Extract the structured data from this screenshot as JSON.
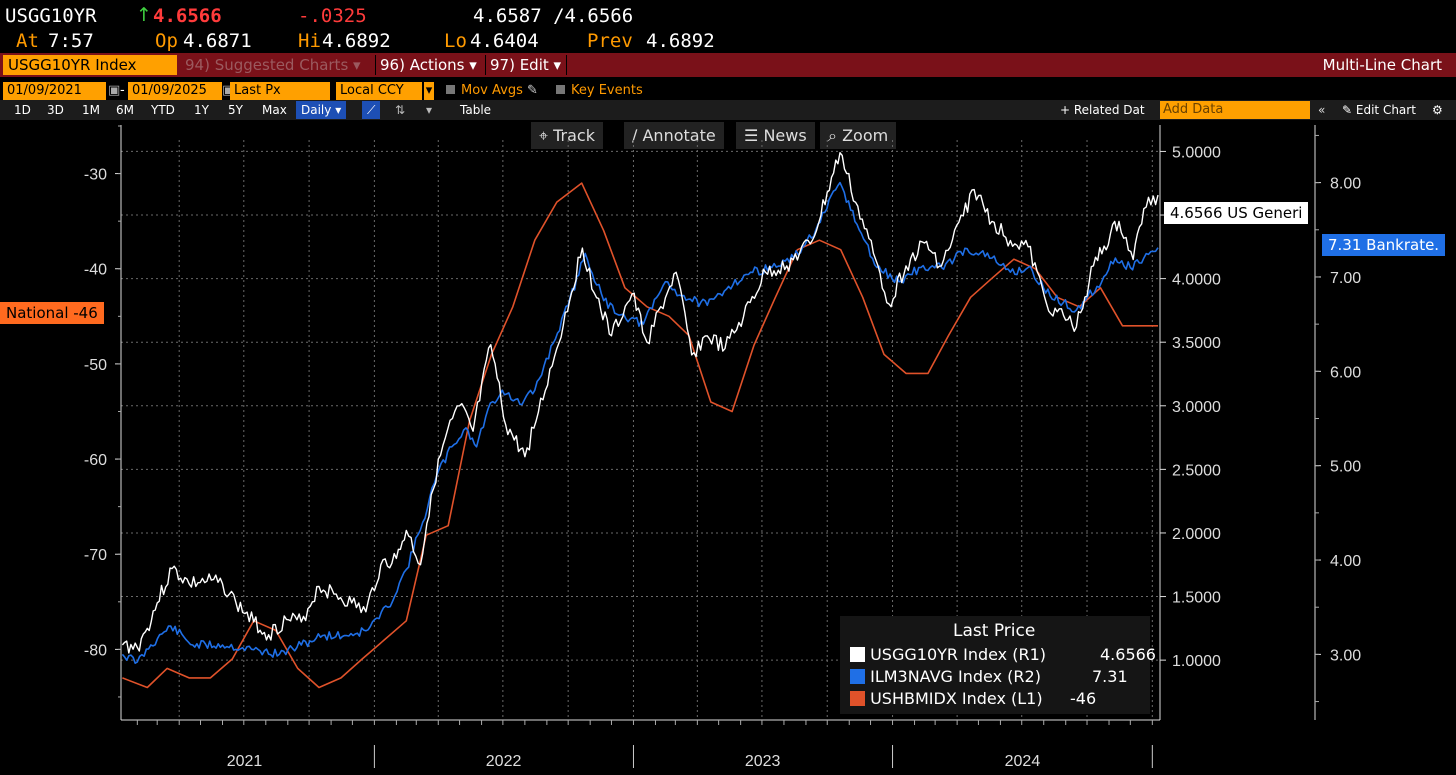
{
  "header": {
    "ticker": "USGG10YR",
    "arrow": "↑",
    "last": "4.6566",
    "change": "-.0325",
    "bid_ask": "4.6587 /4.6566",
    "at_label": "At",
    "at_value": "7:57",
    "op_label": "Op",
    "op_value": "4.6871",
    "hi_label": "Hi",
    "hi_value": "4.6892",
    "lo_label": "Lo",
    "lo_value": "4.6404",
    "prev_label": "Prev",
    "prev_value": "4.6892"
  },
  "titlebar": {
    "security": "USGG10YR Index",
    "suggested": "94) Suggested Charts",
    "actions": "96) Actions",
    "edit": "97) Edit",
    "chart_type": "Multi-Line Chart"
  },
  "controls": {
    "start_date": "01/09/2021",
    "end_date": "01/09/2025",
    "field": "Last Px",
    "currency": "Local CCY",
    "mov_avgs": "Mov Avgs",
    "key_events": "Key Events"
  },
  "ranges": [
    "1D",
    "3D",
    "1M",
    "6M",
    "YTD",
    "1Y",
    "5Y",
    "Max"
  ],
  "frequency": "Daily",
  "table_label": "Table",
  "related_data": "+ Related Dat",
  "add_data_placeholder": "Add Data",
  "edit_chart": "Edit Chart",
  "tools": {
    "track": "Track",
    "annotate": "Annotate",
    "news": "News",
    "zoom": "Zoom"
  },
  "colors": {
    "usgg10yr": "#ffffff",
    "ilm3navg": "#1f6fe6",
    "ushbmidx": "#e0522a",
    "amber": "#ffa000",
    "titlebar": "#7a1119"
  },
  "tags": {
    "national": "National -46",
    "usgg": "4.6566 US Generi",
    "bankrate": "7.31 Bankrate."
  },
  "legend": {
    "title": "Last Price",
    "rows": [
      {
        "name": "USGG10YR Index  (R1)",
        "value": "4.6566",
        "color": "#ffffff"
      },
      {
        "name": "ILM3NAVG Index  (R2)",
        "value": "7.31",
        "color": "#1f6fe6"
      },
      {
        "name": "USHBMIDX Index  (L1)",
        "value": "-46",
        "color": "#e0522a"
      }
    ]
  },
  "chart_data": {
    "type": "line",
    "x_range": [
      "2021-01-09",
      "2025-01-09"
    ],
    "x_tick_labels": [
      "2021",
      "2022",
      "2023",
      "2024"
    ],
    "grid": true,
    "axes": {
      "L1": {
        "ticks": [
          -30,
          -40,
          -50,
          -60,
          -70,
          -80
        ],
        "range": [
          -87,
          -25
        ]
      },
      "R1": {
        "ticks": [
          "5.0000",
          "4.5000",
          "4.0000",
          "3.5000",
          "3.0000",
          "2.5000",
          "2.0000",
          "1.5000",
          "1.0000"
        ],
        "range": [
          0.6,
          5.2
        ]
      },
      "R2": {
        "ticks": [
          "8.00",
          "7.00",
          "6.00",
          "5.00",
          "4.00",
          "3.00"
        ],
        "range": [
          2.4,
          8.6
        ]
      }
    },
    "series": [
      {
        "name": "USGG10YR Index",
        "axis": "R1",
        "points": [
          [
            "2021-01-11",
            1.12
          ],
          [
            "2021-02-01",
            1.1
          ],
          [
            "2021-02-15",
            1.25
          ],
          [
            "2021-03-01",
            1.45
          ],
          [
            "2021-03-22",
            1.72
          ],
          [
            "2021-04-15",
            1.6
          ],
          [
            "2021-05-10",
            1.62
          ],
          [
            "2021-06-01",
            1.6
          ],
          [
            "2021-06-20",
            1.45
          ],
          [
            "2021-07-15",
            1.3
          ],
          [
            "2021-08-05",
            1.2
          ],
          [
            "2021-08-30",
            1.32
          ],
          [
            "2021-09-20",
            1.3
          ],
          [
            "2021-10-15",
            1.58
          ],
          [
            "2021-11-05",
            1.52
          ],
          [
            "2021-11-30",
            1.45
          ],
          [
            "2021-12-20",
            1.38
          ],
          [
            "2022-01-10",
            1.75
          ],
          [
            "2022-02-01",
            1.8
          ],
          [
            "2022-02-15",
            2.02
          ],
          [
            "2022-03-07",
            1.75
          ],
          [
            "2022-03-22",
            2.3
          ],
          [
            "2022-04-11",
            2.75
          ],
          [
            "2022-05-01",
            3.0
          ],
          [
            "2022-05-20",
            2.8
          ],
          [
            "2022-06-14",
            3.48
          ],
          [
            "2022-07-05",
            2.85
          ],
          [
            "2022-08-01",
            2.6
          ],
          [
            "2022-08-20",
            2.95
          ],
          [
            "2022-09-15",
            3.45
          ],
          [
            "2022-10-21",
            4.24
          ],
          [
            "2022-11-10",
            3.85
          ],
          [
            "2022-12-01",
            3.55
          ],
          [
            "2022-12-30",
            3.88
          ],
          [
            "2023-01-20",
            3.5
          ],
          [
            "2023-02-15",
            3.85
          ],
          [
            "2023-03-02",
            4.05
          ],
          [
            "2023-03-24",
            3.4
          ],
          [
            "2023-04-15",
            3.55
          ],
          [
            "2023-05-10",
            3.45
          ],
          [
            "2023-06-05",
            3.7
          ],
          [
            "2023-07-06",
            4.05
          ],
          [
            "2023-08-05",
            4.1
          ],
          [
            "2023-09-10",
            4.3
          ],
          [
            "2023-10-19",
            4.99
          ],
          [
            "2023-11-10",
            4.6
          ],
          [
            "2023-12-05",
            4.2
          ],
          [
            "2023-12-27",
            3.8
          ],
          [
            "2024-01-20",
            4.1
          ],
          [
            "2024-02-15",
            4.28
          ],
          [
            "2024-03-10",
            4.1
          ],
          [
            "2024-04-25",
            4.7
          ],
          [
            "2024-05-20",
            4.45
          ],
          [
            "2024-06-15",
            4.3
          ],
          [
            "2024-07-10",
            4.25
          ],
          [
            "2024-08-05",
            3.8
          ],
          [
            "2024-09-16",
            3.62
          ],
          [
            "2024-10-10",
            4.1
          ],
          [
            "2024-11-15",
            4.45
          ],
          [
            "2024-12-05",
            4.15
          ],
          [
            "2024-12-20",
            4.55
          ],
          [
            "2025-01-09",
            4.6566
          ]
        ]
      },
      {
        "name": "ILM3NAVG Index",
        "axis": "R2",
        "points": [
          [
            "2021-01-11",
            3.0
          ],
          [
            "2021-02-01",
            2.92
          ],
          [
            "2021-02-20",
            3.1
          ],
          [
            "2021-03-20",
            3.3
          ],
          [
            "2021-04-20",
            3.1
          ],
          [
            "2021-06-01",
            3.1
          ],
          [
            "2021-07-15",
            3.05
          ],
          [
            "2021-08-20",
            3.0
          ],
          [
            "2021-09-20",
            3.1
          ],
          [
            "2021-10-20",
            3.2
          ],
          [
            "2021-11-20",
            3.2
          ],
          [
            "2021-12-20",
            3.25
          ],
          [
            "2022-01-20",
            3.5
          ],
          [
            "2022-02-15",
            3.9
          ],
          [
            "2022-03-10",
            4.4
          ],
          [
            "2022-03-30",
            4.9
          ],
          [
            "2022-04-20",
            5.2
          ],
          [
            "2022-05-10",
            5.4
          ],
          [
            "2022-05-25",
            5.2
          ],
          [
            "2022-06-10",
            5.6
          ],
          [
            "2022-06-30",
            5.8
          ],
          [
            "2022-07-25",
            5.65
          ],
          [
            "2022-08-15",
            5.8
          ],
          [
            "2022-09-10",
            6.3
          ],
          [
            "2022-10-01",
            6.7
          ],
          [
            "2022-10-25",
            7.25
          ],
          [
            "2022-11-20",
            6.75
          ],
          [
            "2022-12-15",
            6.6
          ],
          [
            "2023-01-15",
            6.5
          ],
          [
            "2023-02-15",
            6.95
          ],
          [
            "2023-03-10",
            6.8
          ],
          [
            "2023-04-15",
            6.7
          ],
          [
            "2023-05-15",
            6.9
          ],
          [
            "2023-06-15",
            7.05
          ],
          [
            "2023-07-15",
            7.1
          ],
          [
            "2023-08-15",
            7.2
          ],
          [
            "2023-09-15",
            7.5
          ],
          [
            "2023-10-19",
            8.0
          ],
          [
            "2023-11-15",
            7.5
          ],
          [
            "2023-12-10",
            7.1
          ],
          [
            "2024-01-10",
            6.95
          ],
          [
            "2024-02-10",
            7.1
          ],
          [
            "2024-03-10",
            7.1
          ],
          [
            "2024-04-15",
            7.3
          ],
          [
            "2024-05-20",
            7.2
          ],
          [
            "2024-06-15",
            7.05
          ],
          [
            "2024-07-10",
            7.1
          ],
          [
            "2024-08-10",
            6.8
          ],
          [
            "2024-09-16",
            6.65
          ],
          [
            "2024-10-15",
            6.9
          ],
          [
            "2024-11-10",
            7.2
          ],
          [
            "2024-12-01",
            7.1
          ],
          [
            "2024-12-20",
            7.2
          ],
          [
            "2025-01-09",
            7.31
          ]
        ]
      },
      {
        "name": "USHBMIDX Index",
        "axis": "L1",
        "points": [
          [
            "2021-01-11",
            -83
          ],
          [
            "2021-02-15",
            -84
          ],
          [
            "2021-03-15",
            -82
          ],
          [
            "2021-04-15",
            -83
          ],
          [
            "2021-05-15",
            -83
          ],
          [
            "2021-06-15",
            -81
          ],
          [
            "2021-07-15",
            -77
          ],
          [
            "2021-08-15",
            -78
          ],
          [
            "2021-09-15",
            -82
          ],
          [
            "2021-10-15",
            -84
          ],
          [
            "2021-11-15",
            -83
          ],
          [
            "2021-12-15",
            -81
          ],
          [
            "2022-01-15",
            -79
          ],
          [
            "2022-02-15",
            -77
          ],
          [
            "2022-03-15",
            -68
          ],
          [
            "2022-04-15",
            -67
          ],
          [
            "2022-05-15",
            -56
          ],
          [
            "2022-06-15",
            -49
          ],
          [
            "2022-07-15",
            -44
          ],
          [
            "2022-08-15",
            -37
          ],
          [
            "2022-09-15",
            -33
          ],
          [
            "2022-10-20",
            -31
          ],
          [
            "2022-11-20",
            -36
          ],
          [
            "2022-12-20",
            -42
          ],
          [
            "2023-01-20",
            -44
          ],
          [
            "2023-02-20",
            -45
          ],
          [
            "2023-03-20",
            -47
          ],
          [
            "2023-04-20",
            -54
          ],
          [
            "2023-05-20",
            -55
          ],
          [
            "2023-06-20",
            -48
          ],
          [
            "2023-07-20",
            -43
          ],
          [
            "2023-08-20",
            -38
          ],
          [
            "2023-09-20",
            -37
          ],
          [
            "2023-10-20",
            -38
          ],
          [
            "2023-11-20",
            -43
          ],
          [
            "2023-12-20",
            -49
          ],
          [
            "2024-01-20",
            -51
          ],
          [
            "2024-02-20",
            -51
          ],
          [
            "2024-03-20",
            -47
          ],
          [
            "2024-04-20",
            -43
          ],
          [
            "2024-05-20",
            -41
          ],
          [
            "2024-06-20",
            -39
          ],
          [
            "2024-07-20",
            -40
          ],
          [
            "2024-08-20",
            -43
          ],
          [
            "2024-09-20",
            -44
          ],
          [
            "2024-10-20",
            -42
          ],
          [
            "2024-11-20",
            -46
          ],
          [
            "2025-01-09",
            -46
          ]
        ]
      }
    ]
  }
}
